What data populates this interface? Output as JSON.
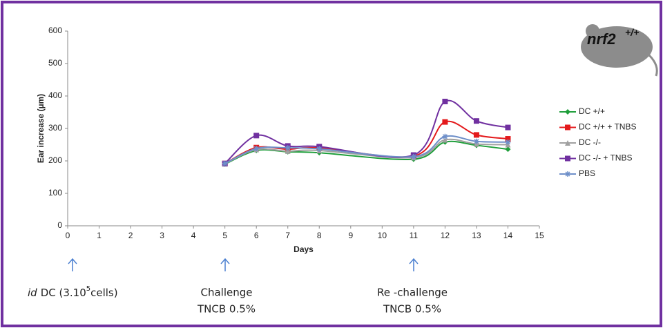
{
  "chart_data": {
    "type": "line",
    "x_label": "Days",
    "y_label": "Ear increase (µm)",
    "x": [
      5,
      6,
      7,
      8,
      11,
      12,
      13,
      14
    ],
    "series": [
      {
        "name": "DC +/+",
        "color": "#1e9e3a",
        "marker": "diamond",
        "values": [
          190,
          232,
          228,
          225,
          205,
          258,
          248,
          236
        ]
      },
      {
        "name": "DC +/+ + TNBS",
        "color": "#e41a1c",
        "marker": "square",
        "values": [
          192,
          241,
          236,
          240,
          215,
          320,
          280,
          268
        ]
      },
      {
        "name": "DC -/-",
        "color": "#a0a0a0",
        "marker": "triangle",
        "values": [
          191,
          235,
          230,
          232,
          210,
          265,
          252,
          250
        ]
      },
      {
        "name": "DC -/- + TNBS",
        "color": "#7030a0",
        "marker": "square",
        "values": [
          192,
          278,
          246,
          244,
          218,
          383,
          323,
          303
        ]
      },
      {
        "name": "PBS",
        "color": "#6e8fc9",
        "marker": "star",
        "values": [
          192,
          238,
          240,
          237,
          213,
          275,
          260,
          258
        ]
      }
    ],
    "xlim": [
      0,
      15
    ],
    "xticks": [
      0,
      1,
      2,
      3,
      4,
      5,
      6,
      7,
      8,
      9,
      10,
      11,
      12,
      13,
      14,
      15
    ],
    "ylim": [
      0,
      600
    ],
    "yticks": [
      0,
      100,
      200,
      300,
      400,
      500,
      600
    ],
    "grid": false,
    "legend": "right"
  },
  "logo": {
    "name": "nrf2",
    "sup": "+/+"
  },
  "annotations": [
    {
      "italic": "id",
      "text": "DC (3.10",
      "sup": "5",
      "tail": "cells)"
    },
    {
      "lines": [
        "Challenge",
        "TNCB 0.5%"
      ]
    },
    {
      "lines": [
        "Re -challenge",
        "TNCB 0.5%"
      ]
    }
  ]
}
